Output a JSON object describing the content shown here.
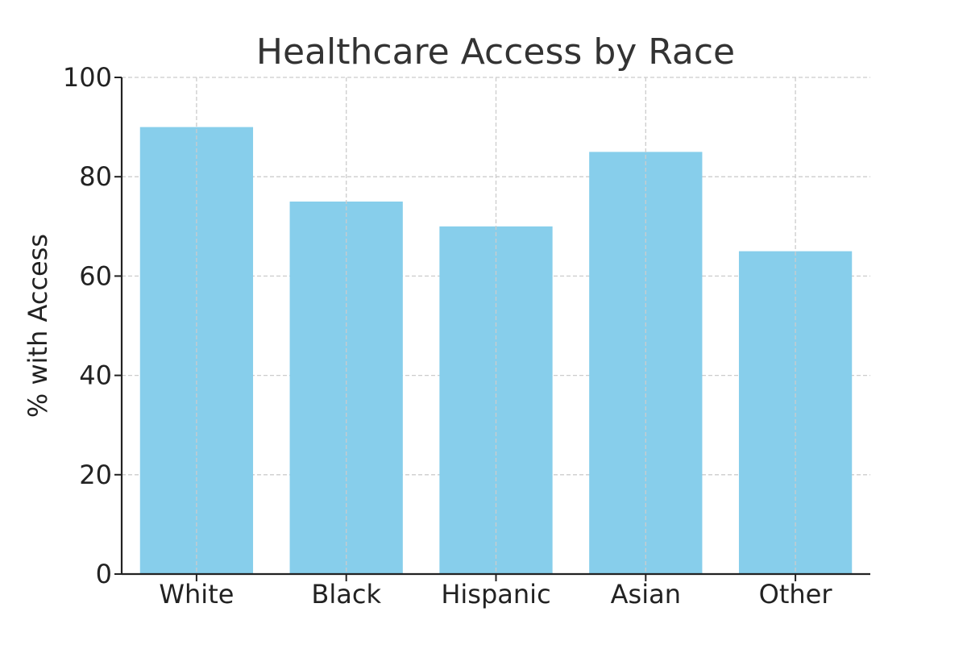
{
  "chart_data": {
    "type": "bar",
    "title": "Healthcare Access by Race",
    "xlabel": "",
    "ylabel": "% with Access",
    "categories": [
      "White",
      "Black",
      "Hispanic",
      "Asian",
      "Other"
    ],
    "values": [
      90,
      75,
      70,
      85,
      65
    ],
    "ylim": [
      0,
      100
    ],
    "yticks": [
      "0",
      "20",
      "40",
      "60",
      "80",
      "100"
    ],
    "grid": true,
    "grid_style": "dashed",
    "legend": "none",
    "bar_color": "#87CEEB",
    "axis_color": "#222222",
    "grid_color": "#cccccc"
  }
}
